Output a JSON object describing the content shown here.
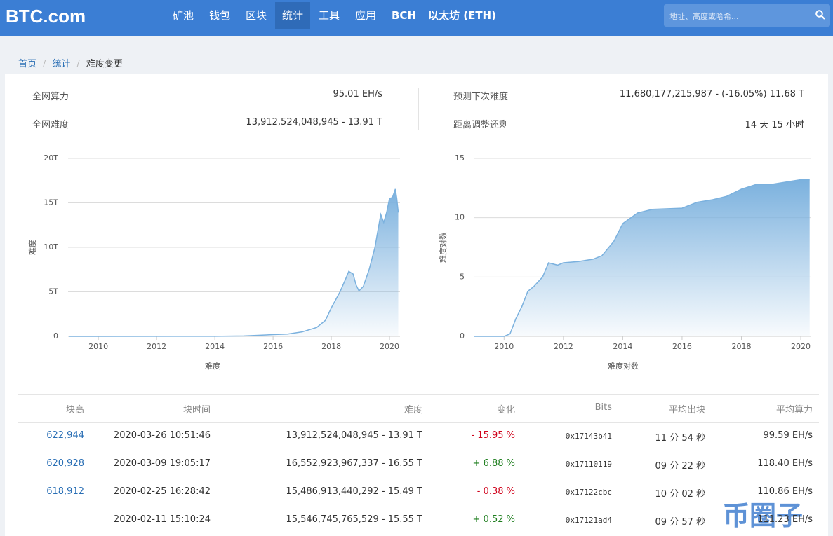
{
  "nav": {
    "logo": "BTC.com",
    "items": [
      "矿池",
      "钱包",
      "区块",
      "统计",
      "工具",
      "应用",
      "BCH",
      "以太坊 (ETH)"
    ],
    "active": 3,
    "search_placeholder": "地址、高度或哈希..."
  },
  "breadcrumb": [
    "首页",
    "统计",
    "难度变更"
  ],
  "summary": [
    {
      "label": "全网算力",
      "value": "95.01 EH/s"
    },
    {
      "label": "全网难度",
      "value": "13,912,524,048,945 - 13.91 T"
    },
    {
      "label": "预测下次难度",
      "value": "11,680,177,215,987 - (-16.05%) 11.68 T"
    },
    {
      "label": "距离调整还剩",
      "value": "14 天 15 小时"
    }
  ],
  "chart_data": [
    {
      "type": "area",
      "x_label": "难度",
      "y_label": "难度",
      "color": "#7bb1de",
      "grid": true,
      "x": [
        2009,
        2014,
        2015,
        2016,
        2016.5,
        2017,
        2017.5,
        2017.8,
        2018,
        2018.3,
        2018.5,
        2018.6,
        2018.75,
        2018.85,
        2018.95,
        2019.1,
        2019.3,
        2019.5,
        2019.6,
        2019.7,
        2019.8,
        2019.9,
        2020,
        2020.1,
        2020.2,
        2020.25,
        2020.3
      ],
      "values": [
        0,
        0.01,
        0.05,
        0.2,
        0.25,
        0.5,
        1.0,
        1.8,
        3.2,
        5.0,
        6.5,
        7.3,
        7.0,
        5.8,
        5.1,
        5.6,
        7.5,
        10.0,
        11.9,
        13.7,
        12.8,
        13.9,
        15.5,
        15.6,
        16.55,
        15.5,
        13.91
      ],
      "xlim": [
        2008.96,
        2020.36
      ],
      "ylim": [
        0,
        20
      ],
      "xticks": [
        2010,
        2012,
        2014,
        2016,
        2018,
        2020
      ],
      "yticks": [
        0,
        {
          "value": 5,
          "label": "5T"
        },
        {
          "value": 10,
          "label": "10T"
        },
        {
          "value": 15,
          "label": "15T"
        },
        {
          "value": 20,
          "label": "20T"
        }
      ]
    },
    {
      "type": "area",
      "x_label": "难度对数",
      "y_label": "难度对数",
      "color": "#7bb1de",
      "grid": true,
      "x": [
        2009,
        2010,
        2010.2,
        2010.4,
        2010.6,
        2010.8,
        2011,
        2011.3,
        2011.5,
        2011.8,
        2012,
        2012.5,
        2013,
        2013.3,
        2013.7,
        2014,
        2014.5,
        2015,
        2016,
        2016.5,
        2017,
        2017.5,
        2018,
        2018.5,
        2019,
        2019.5,
        2020,
        2020.3
      ],
      "values": [
        0,
        0,
        0.2,
        1.5,
        2.5,
        3.8,
        4.2,
        5.0,
        6.2,
        6.0,
        6.2,
        6.3,
        6.5,
        6.8,
        8.0,
        9.5,
        10.4,
        10.7,
        10.8,
        11.3,
        11.5,
        11.8,
        12.4,
        12.8,
        12.8,
        13.0,
        13.2,
        13.2
      ],
      "xlim": [
        2009,
        2020.33
      ],
      "ylim": [
        0,
        15
      ],
      "xticks": [
        2010,
        2012,
        2014,
        2016,
        2018,
        2020
      ],
      "yticks": [
        0,
        5,
        10,
        15
      ]
    }
  ],
  "table": {
    "columns": [
      "块高",
      "块时间",
      "难度",
      "变化",
      "Bits",
      "平均出块",
      "平均算力"
    ],
    "rows": [
      [
        "622,944",
        "2020-03-26 10:51:46",
        "13,912,524,048,945 - 13.91 T",
        "- 15.95 %",
        "0x17143b41",
        "11 分 54 秒",
        "99.59 EH/s"
      ],
      [
        "620,928",
        "2020-03-09 19:05:17",
        "16,552,923,967,337 - 16.55 T",
        "+ 6.88 %",
        "0x17110119",
        "09 分 22 秒",
        "118.40 EH/s"
      ],
      [
        "618,912",
        "2020-02-25 16:28:42",
        "15,486,913,440,292 - 15.49 T",
        "- 0.38 %",
        "0x17122cbc",
        "10 分 02 秒",
        "110.86 EH/s"
      ],
      [
        null,
        "2020-02-11 15:10:24",
        "15,546,745,765,529 - 15.55 T",
        "+ 0.52 %",
        "0x17121ad4",
        "09 分 57 秒",
        "111.23 EH/s"
      ]
    ],
    "colors": {
      "negative": "#d0021b",
      "positive": "#1e7e1e"
    }
  },
  "watermark": "币圈子"
}
